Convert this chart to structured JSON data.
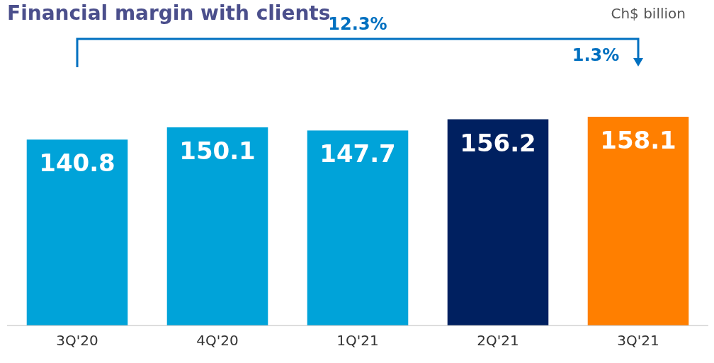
{
  "chart_data": {
    "type": "bar",
    "title": "Financial margin with clients",
    "subtitle": "Ch$ billion",
    "categories": [
      "3Q'20",
      "4Q'20",
      "1Q'21",
      "2Q'21",
      "3Q'21"
    ],
    "values": [
      140.8,
      150.1,
      147.7,
      156.2,
      158.1
    ],
    "colors": [
      "#00a3d9",
      "#00a3d9",
      "#00a3d9",
      "#002060",
      "#ff7f00"
    ],
    "data_labels": true,
    "annotations": [
      "12.3%",
      "1.3%"
    ]
  }
}
